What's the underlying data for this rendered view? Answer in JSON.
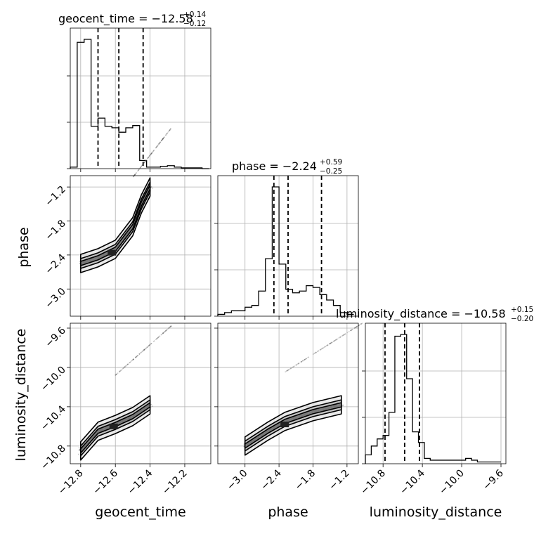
{
  "chart_data": {
    "type": "corner",
    "parameters": [
      "geocent_time",
      "phase",
      "luminosity_distance"
    ],
    "axis_labels": {
      "geocent_time": "geocent_time",
      "phase": "phase",
      "luminosity_distance": "luminosity_distance"
    },
    "ranges": {
      "geocent_time": [
        -12.86,
        -12.05
      ],
      "phase": [
        -3.48,
        -1.0
      ],
      "luminosity_distance": [
        -10.98,
        -9.55
      ]
    },
    "ticks": {
      "geocent_time": [
        -12.8,
        -12.6,
        -12.4,
        -12.2
      ],
      "phase": [
        -3.0,
        -2.4,
        -1.8,
        -1.2
      ],
      "luminosity_distance": [
        -10.8,
        -10.4,
        -10.0,
        -9.6
      ]
    },
    "tick_labels": {
      "geocent_time": [
        "−12.8",
        "−12.6",
        "−12.4",
        "−12.2"
      ],
      "phase": [
        "−3.0",
        "−2.4",
        "−1.8",
        "−1.2"
      ],
      "luminosity_distance": [
        "−10.8",
        "−10.4",
        "−10.0",
        "−9.6"
      ]
    },
    "titles": [
      {
        "param": "geocent_time",
        "text": "geocent_time = −12.58",
        "upper": "+0.14",
        "lower": "−0.12"
      },
      {
        "param": "phase",
        "text": "phase = −2.24",
        "upper": "+0.59",
        "lower": "−0.25"
      },
      {
        "param": "luminosity_distance",
        "text": "luminosity_distance = −10.58",
        "upper": "+0.15",
        "lower": "−0.20"
      }
    ],
    "quantiles": {
      "geocent_time": [
        -12.7,
        -12.58,
        -12.44
      ],
      "phase": [
        -2.49,
        -2.24,
        -1.65
      ],
      "luminosity_distance": [
        -10.78,
        -10.58,
        -10.43
      ]
    },
    "histograms": {
      "geocent_time": {
        "edges": [
          -12.86,
          -12.82,
          -12.78,
          -12.74,
          -12.7,
          -12.66,
          -12.62,
          -12.58,
          -12.54,
          -12.5,
          -12.46,
          -12.42,
          -12.38,
          -12.34,
          -12.3,
          -12.26,
          -12.22,
          -12.18,
          -12.14,
          -12.1,
          -12.06
        ],
        "counts": [
          0.02,
          1.7,
          1.74,
          0.57,
          0.68,
          0.57,
          0.55,
          0.49,
          0.55,
          0.58,
          0.11,
          0.02,
          0.02,
          0.03,
          0.04,
          0.02,
          0.01,
          0.01,
          0.01,
          0.0
        ]
      },
      "phase": {
        "edges": [
          -3.48,
          -3.36,
          -3.24,
          -3.12,
          -3.0,
          -2.88,
          -2.76,
          -2.64,
          -2.52,
          -2.4,
          -2.28,
          -2.16,
          -2.04,
          -1.92,
          -1.8,
          -1.68,
          -1.56,
          -1.44,
          -1.32,
          -1.2,
          -1.08
        ],
        "counts": [
          0.01,
          0.02,
          0.03,
          0.03,
          0.05,
          0.06,
          0.14,
          0.32,
          0.72,
          0.29,
          0.15,
          0.13,
          0.14,
          0.17,
          0.16,
          0.12,
          0.09,
          0.06,
          0.02,
          0.01
        ]
      },
      "luminosity_distance": {
        "edges": [
          -10.98,
          -10.92,
          -10.86,
          -10.8,
          -10.74,
          -10.68,
          -10.62,
          -10.56,
          -10.5,
          -10.44,
          -10.38,
          -10.32,
          -10.26,
          -10.2,
          -10.14,
          -10.08,
          -10.02,
          -9.96,
          -9.9,
          -9.84,
          -9.78,
          -9.72,
          -9.66,
          -9.6
        ],
        "counts": [
          0.05,
          0.1,
          0.14,
          0.16,
          0.29,
          0.72,
          0.73,
          0.48,
          0.18,
          0.12,
          0.03,
          0.02,
          0.02,
          0.02,
          0.02,
          0.02,
          0.02,
          0.03,
          0.02,
          0.01,
          0.01,
          0.01,
          0.01
        ]
      }
    },
    "contour_panels": [
      {
        "x": "geocent_time",
        "y": "phase",
        "center": [
          -12.62,
          -2.36
        ],
        "levels": [
          [
            -12.8,
            -2.55
          ],
          [
            -12.7,
            -2.45
          ],
          [
            -12.6,
            -2.3
          ],
          [
            -12.5,
            -1.9
          ],
          [
            -12.45,
            -1.5
          ],
          [
            -12.4,
            -1.2
          ]
        ]
      },
      {
        "x": "geocent_time",
        "y": "luminosity_distance",
        "center": [
          -12.61,
          -10.6
        ],
        "levels": [
          [
            -12.8,
            -10.85
          ],
          [
            -12.7,
            -10.65
          ],
          [
            -12.6,
            -10.58
          ],
          [
            -12.5,
            -10.5
          ],
          [
            -12.4,
            -10.38
          ]
        ]
      },
      {
        "x": "phase",
        "y": "luminosity_distance",
        "center": [
          -2.3,
          -10.58
        ],
        "levels": [
          [
            -3.0,
            -10.8
          ],
          [
            -2.6,
            -10.65
          ],
          [
            -2.3,
            -10.55
          ],
          [
            -1.8,
            -10.45
          ],
          [
            -1.3,
            -10.38
          ]
        ]
      }
    ],
    "grid": true
  }
}
